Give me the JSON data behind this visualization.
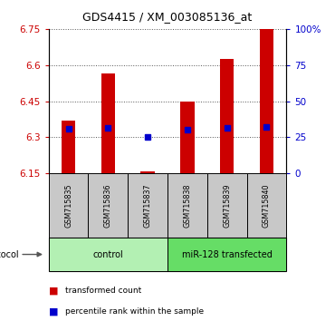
{
  "title": "GDS4415 / XM_003085136_at",
  "samples": [
    "GSM715835",
    "GSM715836",
    "GSM715837",
    "GSM715838",
    "GSM715839",
    "GSM715840"
  ],
  "y_min": 6.15,
  "y_max": 6.75,
  "y_ticks": [
    6.15,
    6.3,
    6.45,
    6.6,
    6.75
  ],
  "y_tick_labels": [
    "6.15",
    "6.3",
    "6.45",
    "6.6",
    "6.75"
  ],
  "right_y_ticks": [
    0,
    25,
    50,
    75,
    100
  ],
  "right_y_tick_labels": [
    "0",
    "25",
    "50",
    "75",
    "100%"
  ],
  "bar_bottom": 6.15,
  "bar_tops": [
    6.37,
    6.565,
    6.157,
    6.45,
    6.625,
    6.75
  ],
  "blue_square_y": [
    6.336,
    6.34,
    6.302,
    6.332,
    6.338,
    6.342
  ],
  "bar_color": "#cc0000",
  "blue_color": "#0000cc",
  "bar_width": 0.35,
  "legend_red_label": "transformed count",
  "legend_blue_label": "percentile rank within the sample",
  "plot_bg_color": "#ffffff",
  "sample_bg_color": "#c8c8c8",
  "ctrl_color": "#b3f0b3",
  "mir_color": "#66dd66",
  "left_label_color": "#cc0000",
  "right_label_color": "#0000cc",
  "dotted_line_color": "#555555"
}
